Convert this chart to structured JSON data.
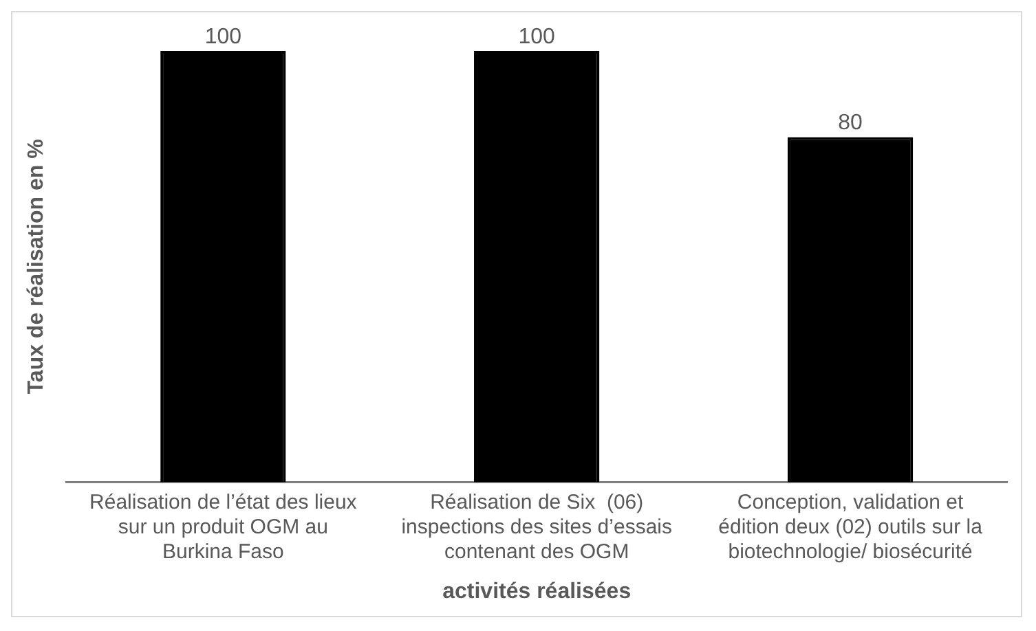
{
  "chart_data": {
    "type": "bar",
    "xlabel": "activités réalisées",
    "ylabel": "Taux de réalisation en %",
    "categories": [
      "Réalisation de l’état des lieux sur un produit OGM au Burkina Faso",
      "Réalisation de Six  (06) inspections des sites d’essais contenant des OGM",
      "Conception, validation et édition deux (02) outils sur la biotechnologie/ biosécurité"
    ],
    "values": [
      100,
      100,
      80
    ],
    "color": "#000000",
    "data_labels": true,
    "grid": false,
    "legend": false
  }
}
